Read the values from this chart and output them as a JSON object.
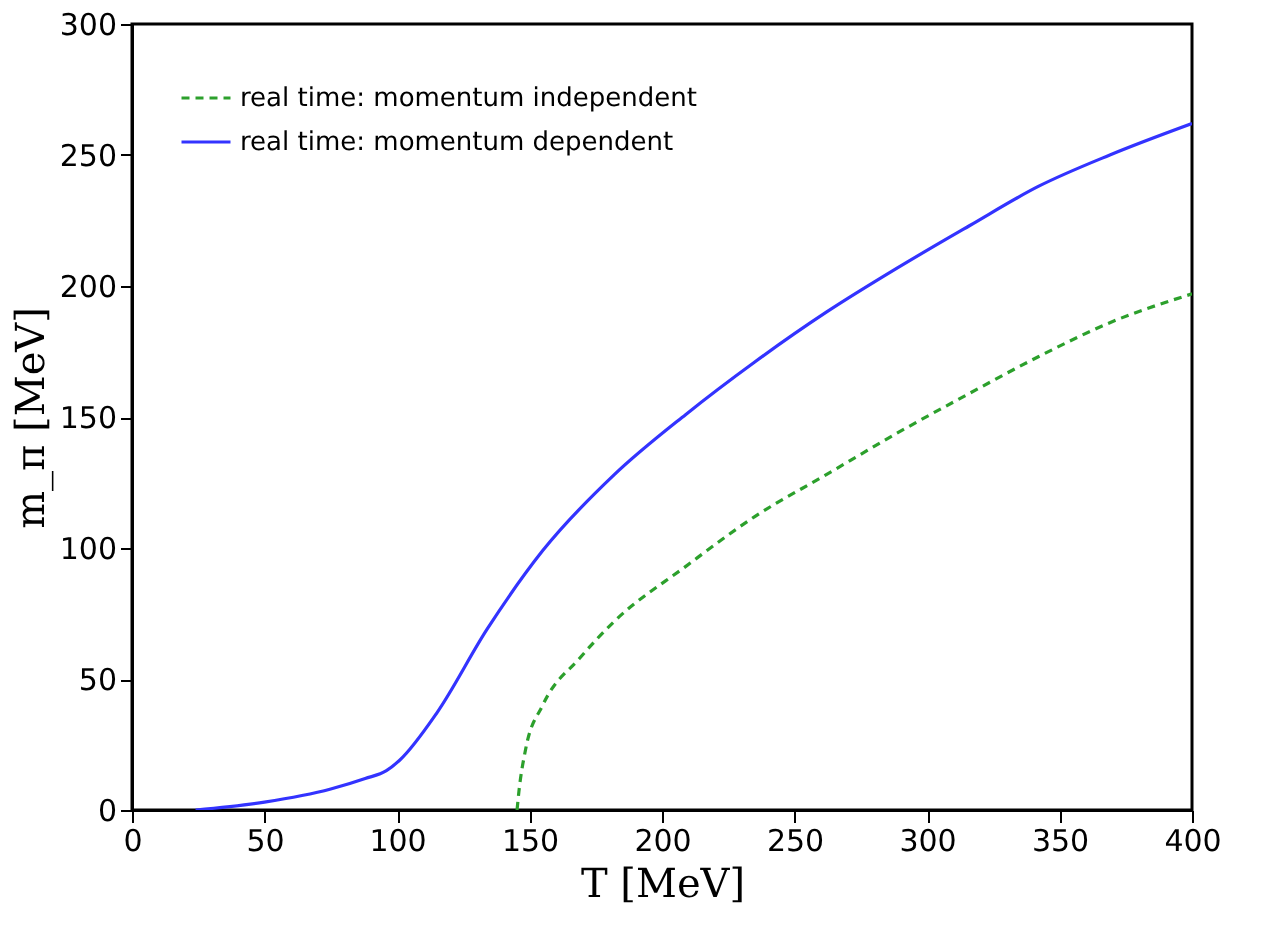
{
  "chart_data": {
    "type": "line",
    "xlabel": "T [MeV]",
    "ylabel": "m_π [MeV]",
    "xlim": [
      0,
      400
    ],
    "xticks": [
      0,
      50,
      100,
      150,
      200,
      250,
      300,
      350,
      400
    ],
    "ylim": [
      0,
      300
    ],
    "yticks": [
      0,
      50,
      100,
      150,
      200,
      250,
      300
    ],
    "grid": false,
    "legend": "top left",
    "marker": "none",
    "series": [
      {
        "name": "real time: momentum independent",
        "color": "#2ca02c",
        "line_style": "dashed",
        "x": [
          145.3,
          146,
          148.5,
          155,
          169,
          182,
          209,
          235,
          262,
          289,
          316,
          342,
          369,
          400
        ],
        "values": [
          0,
          7,
          23,
          40,
          58,
          72,
          93,
          112,
          128,
          144,
          159,
          173,
          186,
          197
        ]
      },
      {
        "name": "real time: momentum dependent",
        "color": "#3333ff",
        "line_style": "solid",
        "x": [
          24,
          50,
          75,
          88,
          96,
          101,
          115,
          134,
          155,
          182,
          209,
          235,
          262,
          289,
          316,
          342,
          369,
          400
        ],
        "values": [
          0,
          3,
          8,
          12,
          15,
          19,
          37,
          69,
          99,
          128,
          151,
          171,
          190,
          207,
          223,
          238,
          250,
          262
        ]
      }
    ]
  }
}
